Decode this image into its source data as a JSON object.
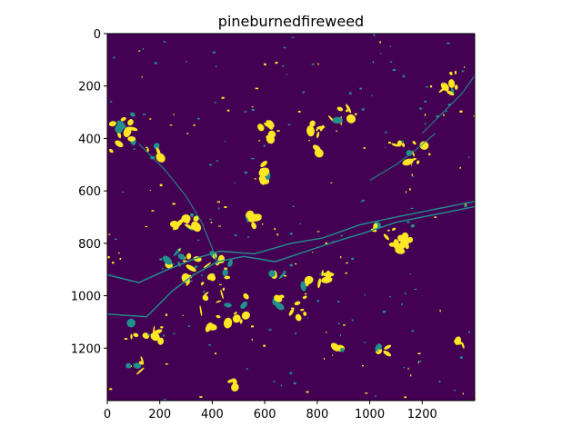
{
  "chart_data": {
    "type": "heatmap",
    "title": "pineburnedfireweed",
    "xlabel": "",
    "ylabel": "",
    "xlim": [
      0,
      1400
    ],
    "ylim": [
      1400,
      0
    ],
    "x_ticks": [
      0,
      200,
      400,
      600,
      800,
      1000,
      1200
    ],
    "y_ticks": [
      0,
      200,
      400,
      600,
      800,
      1000,
      1200
    ],
    "x_tick_labels": [
      "0",
      "200",
      "400",
      "600",
      "800",
      "1000",
      "1200"
    ],
    "y_tick_labels": [
      "0",
      "200",
      "400",
      "600",
      "800",
      "1000",
      "1200"
    ],
    "colormap": "viridis",
    "background_value_color": "#440154",
    "mid_value_color": "#21918c",
    "high_value_color": "#fde725",
    "grid": false,
    "description_of_content": "binary/ternary mask image; patches of high value scattered mostly along a diagonal river-like band from left-middle to right"
  }
}
